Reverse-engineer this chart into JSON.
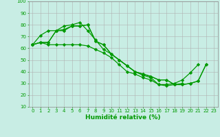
{
  "series": [
    {
      "x": [
        0,
        1,
        2,
        3,
        4,
        5,
        6,
        7,
        8,
        9,
        10,
        11,
        12,
        13,
        14,
        15,
        16,
        17,
        18,
        19,
        20,
        21,
        22,
        23
      ],
      "y": [
        63,
        65,
        63,
        63,
        63,
        63,
        63,
        62,
        59,
        56,
        52,
        46,
        40,
        38,
        35,
        33,
        29,
        29,
        30,
        33,
        39,
        46,
        null,
        null
      ]
    },
    {
      "x": [
        0,
        1,
        2,
        3,
        4,
        5,
        6,
        7,
        8,
        9,
        10,
        11,
        12,
        13,
        14,
        15,
        16,
        17,
        18,
        19,
        20,
        21,
        22,
        23
      ],
      "y": [
        63,
        71,
        75,
        75,
        79,
        80,
        82,
        75,
        67,
        59,
        55,
        50,
        45,
        40,
        37,
        35,
        29,
        28,
        29,
        30,
        null,
        null,
        null,
        null
      ]
    },
    {
      "x": [
        0,
        1,
        2,
        3,
        4,
        5,
        6,
        7,
        8,
        9,
        10,
        11,
        12,
        13,
        14,
        15,
        16,
        17,
        18,
        19,
        20,
        21,
        22,
        23
      ],
      "y": [
        63,
        65,
        65,
        75,
        76,
        79,
        79,
        80,
        66,
        63,
        55,
        50,
        45,
        40,
        38,
        36,
        33,
        33,
        29,
        29,
        30,
        32,
        46,
        null
      ]
    },
    {
      "x": [
        0,
        1,
        2,
        3,
        4,
        5,
        6,
        7,
        8,
        9,
        10,
        11,
        12,
        13,
        14,
        15,
        16,
        17,
        18,
        19,
        20,
        21,
        22,
        23
      ],
      "y": [
        63,
        65,
        65,
        75,
        75,
        79,
        79,
        80,
        66,
        63,
        55,
        50,
        45,
        40,
        38,
        36,
        33,
        33,
        29,
        29,
        30,
        32,
        46,
        null
      ]
    }
  ],
  "line_color": "#009900",
  "marker": "D",
  "markersize": 2.2,
  "xlabel": "Humidité relative (%)",
  "xlim_min": -0.5,
  "xlim_max": 23.5,
  "ylim_min": 10,
  "ylim_max": 100,
  "yticks": [
    10,
    20,
    30,
    40,
    50,
    60,
    70,
    80,
    90,
    100
  ],
  "xticks": [
    0,
    1,
    2,
    3,
    4,
    5,
    6,
    7,
    8,
    9,
    10,
    11,
    12,
    13,
    14,
    15,
    16,
    17,
    18,
    19,
    20,
    21,
    22,
    23
  ],
  "bg_color": "#c8ede4",
  "grid_color": "#b0b0b0",
  "tick_fontsize": 5.0,
  "xlabel_fontsize": 6.5,
  "linewidth": 0.9
}
